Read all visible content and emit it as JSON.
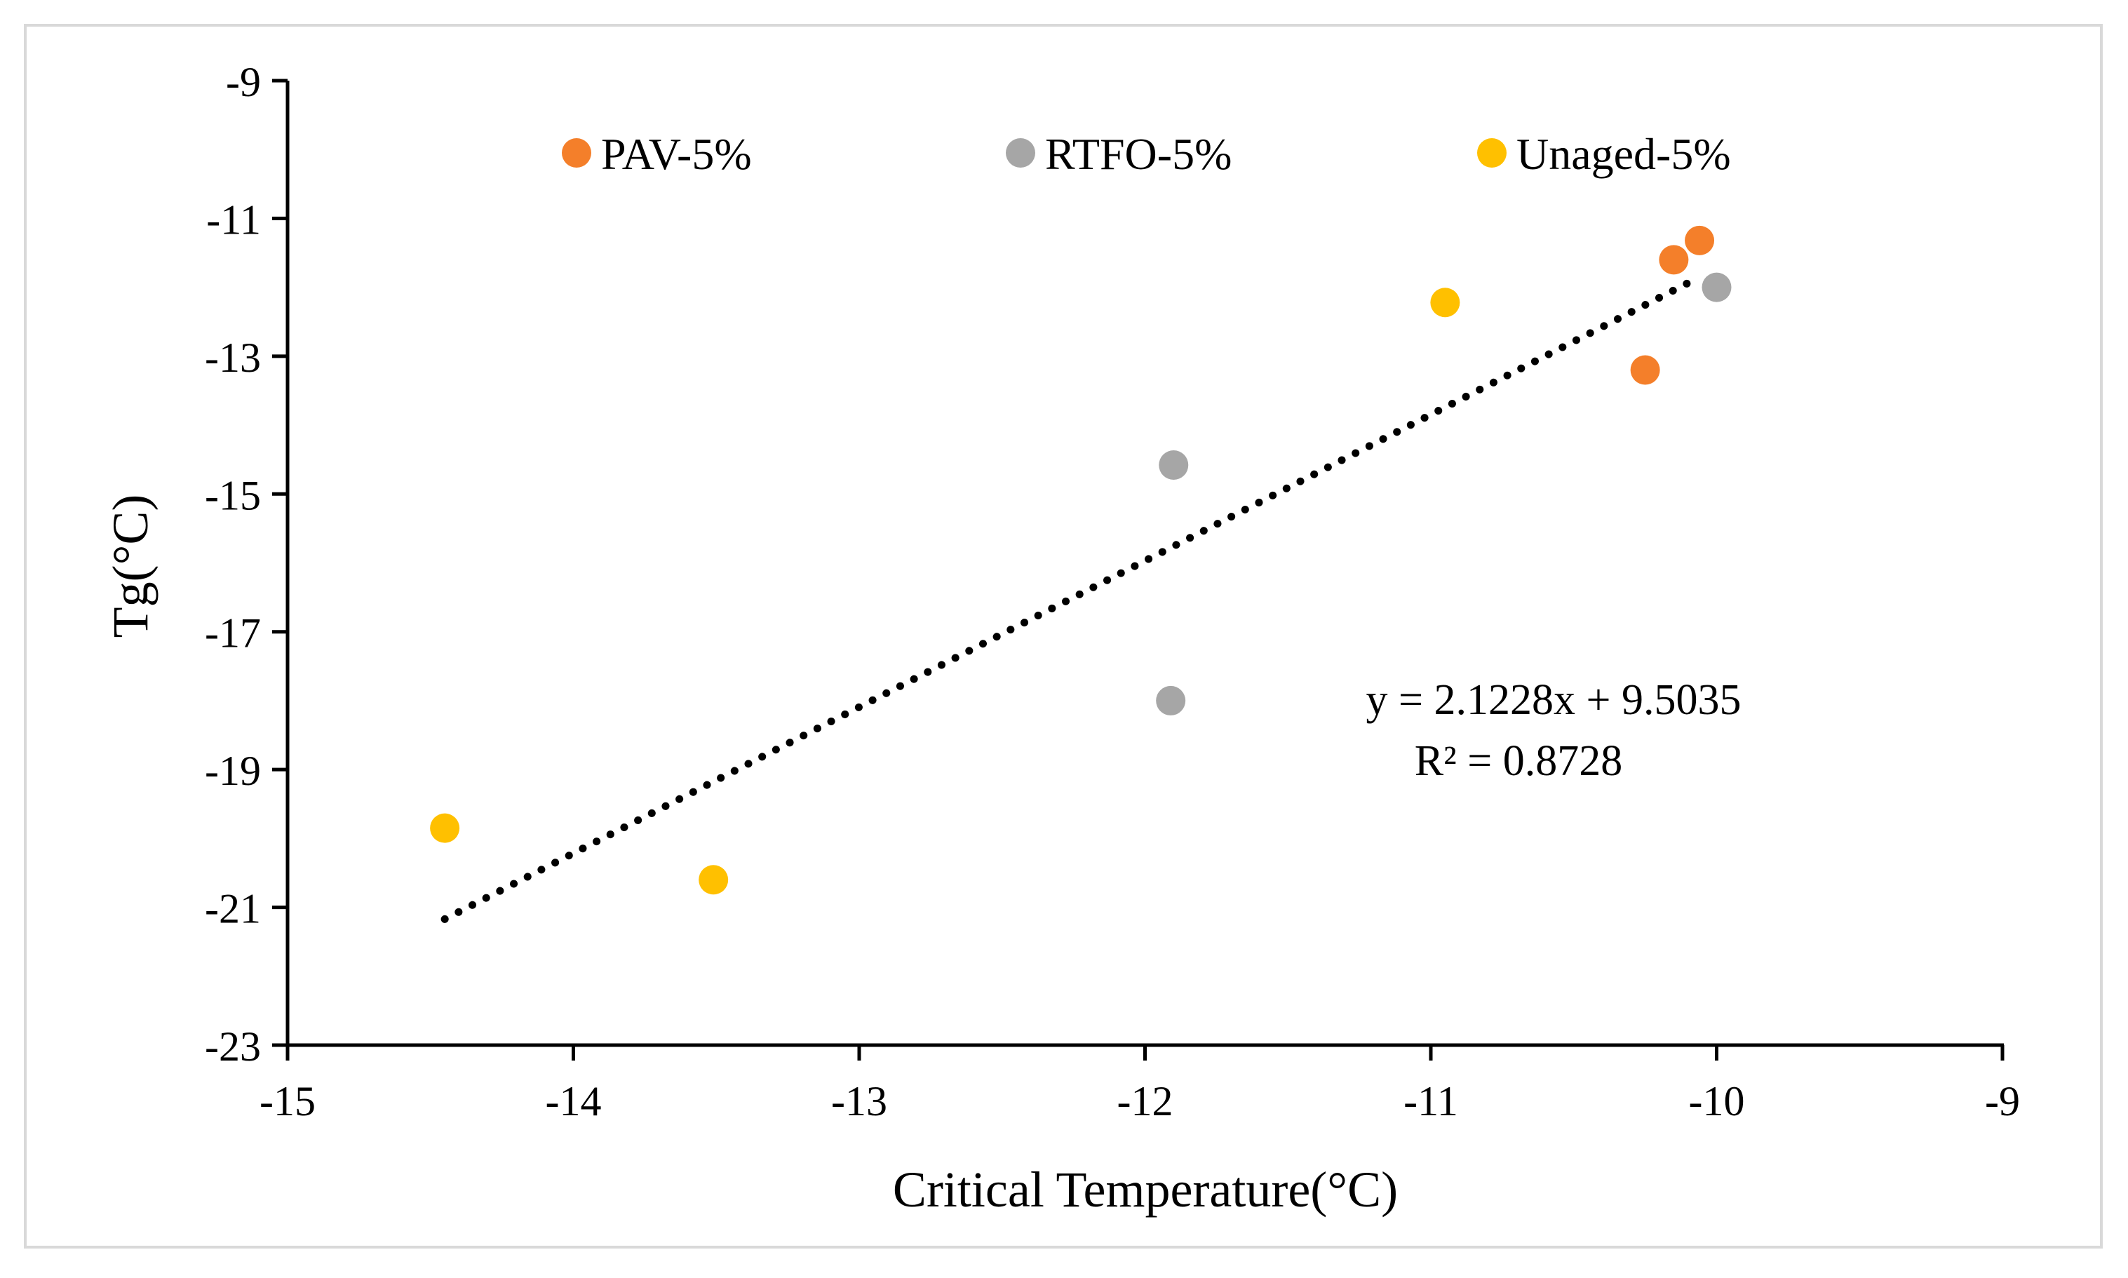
{
  "chart_data": {
    "type": "scatter",
    "title": "",
    "xlabel": "Critical Temperature(°C)",
    "ylabel": "Tg(°C)",
    "xlim": [
      -15,
      -9
    ],
    "ylim": [
      -23,
      -9
    ],
    "xticks": [
      -15,
      -14,
      -13,
      -12,
      -11,
      -10,
      -9
    ],
    "yticks": [
      -9,
      -11,
      -13,
      -15,
      -17,
      -19,
      -21,
      -23
    ],
    "xtick_labels": [
      "-15",
      "-14",
      "-13",
      "-12",
      "-11",
      "-10",
      "-9"
    ],
    "ytick_labels": [
      "-9",
      "-11",
      "-13",
      "-15",
      "-17",
      "-19",
      "-21",
      "-23"
    ],
    "grid": false,
    "legend_position": "top",
    "series": [
      {
        "name": "PAV-5%",
        "color": "#F47F2A",
        "points": [
          {
            "x": -10.15,
            "y": -11.6
          },
          {
            "x": -10.06,
            "y": -11.32
          },
          {
            "x": -10.25,
            "y": -13.2
          }
        ]
      },
      {
        "name": "RTFO-5%",
        "color": "#A6A6A6",
        "points": [
          {
            "x": -10.0,
            "y": -12.0
          },
          {
            "x": -11.9,
            "y": -14.58
          },
          {
            "x": -11.91,
            "y": -18.0
          }
        ]
      },
      {
        "name": "Unaged-5%",
        "color": "#FFC000",
        "points": [
          {
            "x": -10.95,
            "y": -12.22
          },
          {
            "x": -14.45,
            "y": -19.85
          },
          {
            "x": -13.51,
            "y": -20.6
          }
        ]
      }
    ],
    "trendline": {
      "type": "linear",
      "style": "dotted",
      "color": "#000000",
      "slope": 2.1228,
      "intercept": 9.5035,
      "x_range": [
        -14.45,
        -10.06
      ],
      "equation_label": "y = 2.1228x + 9.5035",
      "r2_label": "R² = 0.8728"
    }
  }
}
